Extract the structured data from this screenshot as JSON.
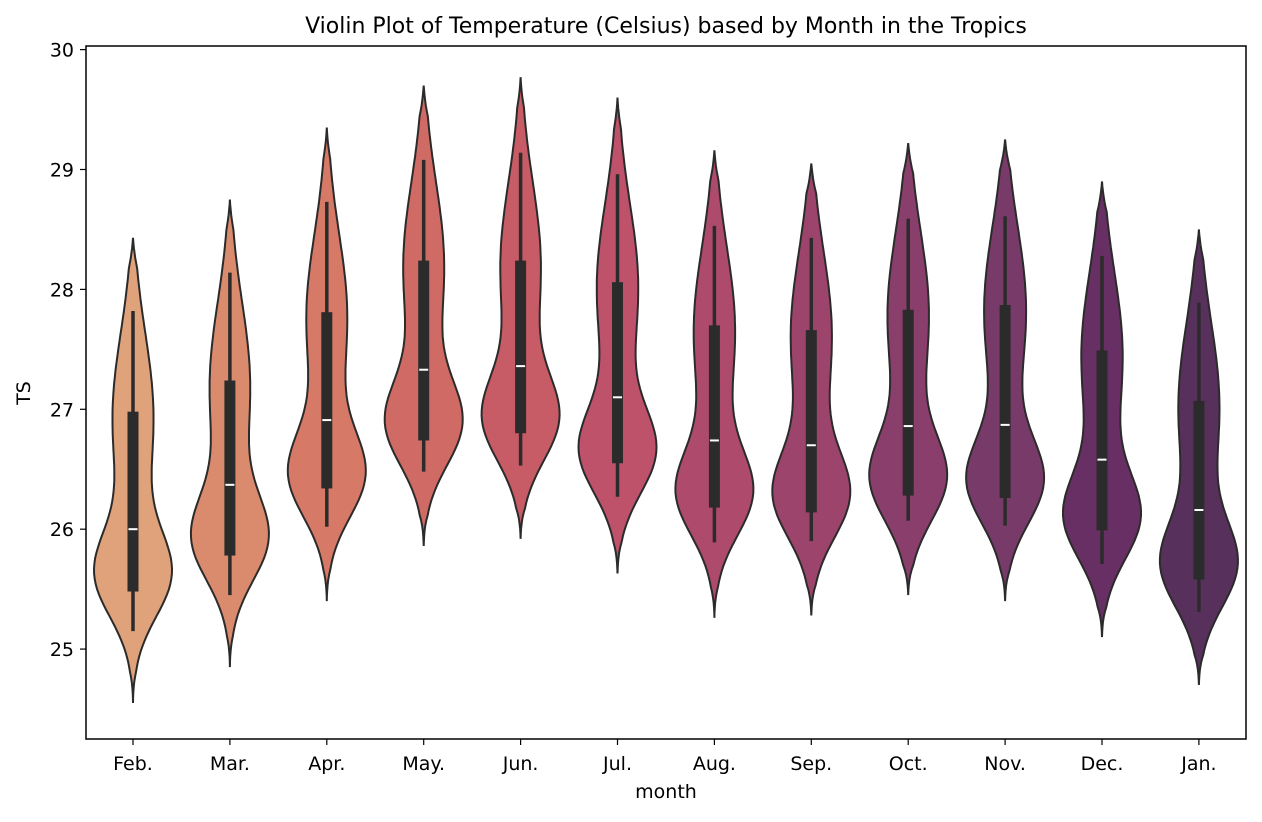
{
  "chart_data": {
    "type": "violin",
    "title": "Violin Plot of Temperature (Celsius) based by Month in the Tropics",
    "xlabel": "month",
    "ylabel": "TS",
    "ylim": [
      24.25,
      30.03
    ],
    "y_ticks": [
      25,
      26,
      27,
      28,
      29,
      30
    ],
    "grid": false,
    "legend": "none",
    "categories": [
      "Feb.",
      "Mar.",
      "Apr.",
      "May.",
      "Jun.",
      "Jul.",
      "Aug.",
      "Sep.",
      "Oct.",
      "Nov.",
      "Dec.",
      "Jan."
    ],
    "colors": [
      "#e0a27a",
      "#da8b6d",
      "#d67a67",
      "#d06a64",
      "#c85c66",
      "#be526b",
      "#ae4b6c",
      "#9d446d",
      "#8a3e6c",
      "#783a69",
      "#672f63",
      "#57305c"
    ],
    "violins": [
      {
        "min": 24.55,
        "max": 28.43,
        "q1": 25.48,
        "median": 26.0,
        "q3": 26.98,
        "whisker_low": 25.15,
        "whisker_high": 27.82,
        "peak": 25.62
      },
      {
        "min": 24.85,
        "max": 28.75,
        "q1": 25.78,
        "median": 26.37,
        "q3": 27.24,
        "whisker_low": 25.45,
        "whisker_high": 28.14,
        "peak": 25.92
      },
      {
        "min": 25.4,
        "max": 29.35,
        "q1": 26.34,
        "median": 26.91,
        "q3": 27.81,
        "whisker_low": 26.02,
        "whisker_high": 28.73,
        "peak": 26.45
      },
      {
        "min": 25.86,
        "max": 29.7,
        "q1": 26.74,
        "median": 27.33,
        "q3": 28.24,
        "whisker_low": 26.48,
        "whisker_high": 29.08,
        "peak": 26.88
      },
      {
        "min": 25.92,
        "max": 29.77,
        "q1": 26.8,
        "median": 27.36,
        "q3": 28.24,
        "whisker_low": 26.53,
        "whisker_high": 29.14,
        "peak": 26.92
      },
      {
        "min": 25.63,
        "max": 29.6,
        "q1": 26.55,
        "median": 27.1,
        "q3": 28.06,
        "whisker_low": 26.27,
        "whisker_high": 28.96,
        "peak": 26.65
      },
      {
        "min": 25.26,
        "max": 29.16,
        "q1": 26.18,
        "median": 26.74,
        "q3": 27.7,
        "whisker_low": 25.89,
        "whisker_high": 28.53,
        "peak": 26.3
      },
      {
        "min": 25.28,
        "max": 29.05,
        "q1": 26.14,
        "median": 26.7,
        "q3": 27.66,
        "whisker_low": 25.9,
        "whisker_high": 28.43,
        "peak": 26.28
      },
      {
        "min": 25.45,
        "max": 29.22,
        "q1": 26.28,
        "median": 26.86,
        "q3": 27.83,
        "whisker_low": 26.07,
        "whisker_high": 28.59,
        "peak": 26.42
      },
      {
        "min": 25.4,
        "max": 29.25,
        "q1": 26.26,
        "median": 26.87,
        "q3": 27.87,
        "whisker_low": 26.03,
        "whisker_high": 28.61,
        "peak": 26.4
      },
      {
        "min": 25.1,
        "max": 28.9,
        "q1": 25.99,
        "median": 26.58,
        "q3": 27.49,
        "whisker_low": 25.71,
        "whisker_high": 28.28,
        "peak": 26.1
      },
      {
        "min": 24.7,
        "max": 28.5,
        "q1": 25.58,
        "median": 26.16,
        "q3": 27.07,
        "whisker_low": 25.31,
        "whisker_high": 27.89,
        "peak": 25.7
      }
    ]
  }
}
